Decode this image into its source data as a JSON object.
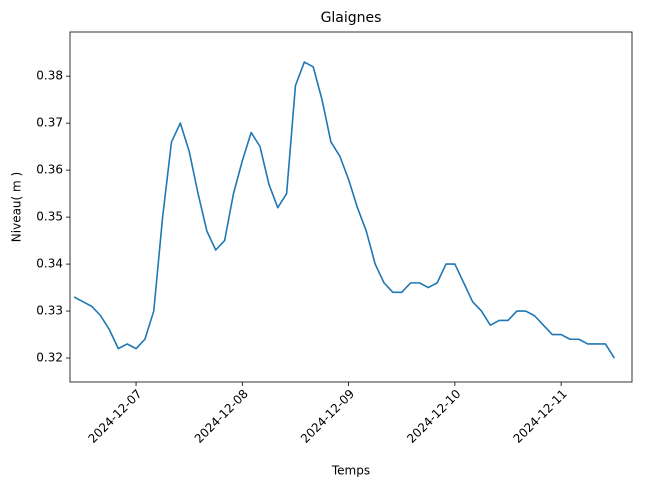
{
  "chart_data": {
    "type": "line",
    "title": "Glaignes",
    "x_label": "Temps",
    "y_label": "Niveau( m )",
    "x": [
      "2024-12-06T10:00",
      "2024-12-06T12:00",
      "2024-12-06T14:00",
      "2024-12-06T16:00",
      "2024-12-06T18:00",
      "2024-12-06T20:00",
      "2024-12-06T22:00",
      "2024-12-07T00:00",
      "2024-12-07T02:00",
      "2024-12-07T04:00",
      "2024-12-07T06:00",
      "2024-12-07T08:00",
      "2024-12-07T10:00",
      "2024-12-07T12:00",
      "2024-12-07T14:00",
      "2024-12-07T16:00",
      "2024-12-07T18:00",
      "2024-12-07T20:00",
      "2024-12-07T22:00",
      "2024-12-08T00:00",
      "2024-12-08T02:00",
      "2024-12-08T04:00",
      "2024-12-08T06:00",
      "2024-12-08T08:00",
      "2024-12-08T10:00",
      "2024-12-08T12:00",
      "2024-12-08T14:00",
      "2024-12-08T16:00",
      "2024-12-08T18:00",
      "2024-12-08T20:00",
      "2024-12-08T22:00",
      "2024-12-09T00:00",
      "2024-12-09T02:00",
      "2024-12-09T04:00",
      "2024-12-09T06:00",
      "2024-12-09T08:00",
      "2024-12-09T10:00",
      "2024-12-09T12:00",
      "2024-12-09T14:00",
      "2024-12-09T16:00",
      "2024-12-09T18:00",
      "2024-12-09T20:00",
      "2024-12-09T22:00",
      "2024-12-10T00:00",
      "2024-12-10T02:00",
      "2024-12-10T04:00",
      "2024-12-10T06:00",
      "2024-12-10T08:00",
      "2024-12-10T10:00",
      "2024-12-10T12:00",
      "2024-12-10T14:00",
      "2024-12-10T16:00",
      "2024-12-10T18:00",
      "2024-12-10T20:00",
      "2024-12-10T22:00",
      "2024-12-11T00:00",
      "2024-12-11T02:00",
      "2024-12-11T04:00",
      "2024-12-11T06:00",
      "2024-12-11T08:00",
      "2024-12-11T10:00",
      "2024-12-11T12:00"
    ],
    "series": [
      {
        "name": "Niveau",
        "color": "#1f77b4",
        "values": [
          0.333,
          0.332,
          0.331,
          0.329,
          0.326,
          0.322,
          0.323,
          0.322,
          0.324,
          0.33,
          0.35,
          0.366,
          0.37,
          0.364,
          0.355,
          0.347,
          0.343,
          0.345,
          0.355,
          0.362,
          0.368,
          0.365,
          0.357,
          0.352,
          0.355,
          0.378,
          0.383,
          0.382,
          0.375,
          0.366,
          0.363,
          0.358,
          0.352,
          0.347,
          0.34,
          0.336,
          0.334,
          0.334,
          0.336,
          0.336,
          0.335,
          0.336,
          0.34,
          0.34,
          0.336,
          0.332,
          0.33,
          0.327,
          0.328,
          0.328,
          0.33,
          0.33,
          0.329,
          0.327,
          0.325,
          0.325,
          0.324,
          0.324,
          0.323,
          0.323,
          0.323,
          0.32
        ]
      }
    ],
    "xlim": [
      "2024-12-06T09:05",
      "2024-12-11T16:00"
    ],
    "xticks": [
      "2024-12-07",
      "2024-12-08",
      "2024-12-09",
      "2024-12-10",
      "2024-12-11"
    ],
    "ylim": [
      0.3149,
      0.3894
    ],
    "yticks": [
      0.32,
      0.33,
      0.34,
      0.35,
      0.36,
      0.37,
      0.38
    ],
    "grid": false
  }
}
